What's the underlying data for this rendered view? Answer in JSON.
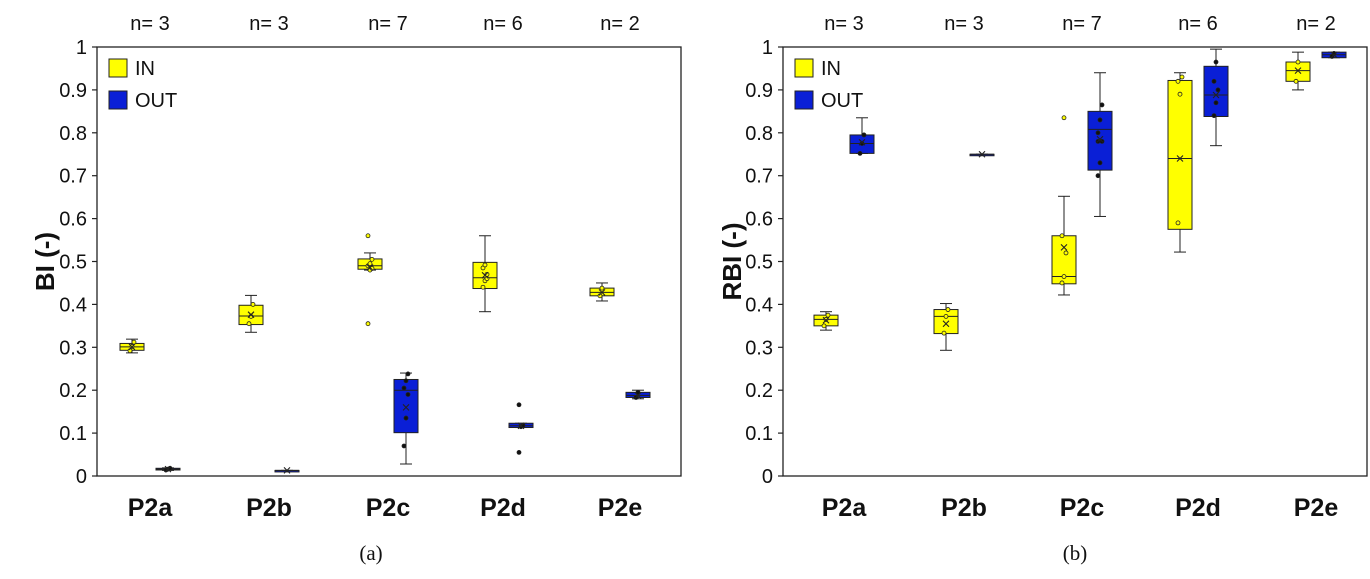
{
  "chart_data": [
    {
      "type": "box",
      "panel": "a",
      "caption": "(a)",
      "ylabel": "BI (-)",
      "ylim": [
        0,
        1
      ],
      "yticks": [
        "0",
        "0.1",
        "0.2",
        "0.3",
        "0.4",
        "0.5",
        "0.6",
        "0.7",
        "0.8",
        "0.9",
        "1"
      ],
      "categories": [
        "P2a",
        "P2b",
        "P2c",
        "P2d",
        "P2e"
      ],
      "counts": [
        "n= 3",
        "n= 3",
        "n= 7",
        "n= 6",
        "n= 2"
      ],
      "legend": {
        "position": "top-left",
        "entries": [
          "IN",
          "OUT"
        ]
      },
      "grid": false,
      "series": [
        {
          "name": "IN",
          "color": "#ffff00",
          "boxes": [
            {
              "min": 0.287,
              "q1": 0.293,
              "median": 0.301,
              "q3": 0.309,
              "max": 0.319,
              "mean": 0.301,
              "points": [
                0.292,
                0.302,
                0.312
              ]
            },
            {
              "min": 0.335,
              "q1": 0.353,
              "median": 0.373,
              "q3": 0.398,
              "max": 0.421,
              "mean": 0.376,
              "points": [
                0.355,
                0.372,
                0.4
              ]
            },
            {
              "min": 0.48,
              "q1": 0.482,
              "median": 0.49,
              "q3": 0.506,
              "max": 0.52,
              "mean": 0.486,
              "points": [
                0.355,
                0.48,
                0.484,
                0.49,
                0.495,
                0.505,
                0.56
              ]
            },
            {
              "min": 0.383,
              "q1": 0.437,
              "median": 0.462,
              "q3": 0.498,
              "max": 0.56,
              "mean": 0.468,
              "points": [
                0.44,
                0.455,
                0.47,
                0.485,
                0.492,
                0.46
              ]
            },
            {
              "min": 0.408,
              "q1": 0.42,
              "median": 0.428,
              "q3": 0.438,
              "max": 0.45,
              "mean": 0.428,
              "points": [
                0.42,
                0.438
              ]
            }
          ]
        },
        {
          "name": "OUT",
          "color": "#0a1fd6",
          "boxes": [
            {
              "min": 0.013,
              "q1": 0.014,
              "median": 0.016,
              "q3": 0.018,
              "max": 0.019,
              "mean": 0.016,
              "points": [
                0.014,
                0.016,
                0.018
              ]
            },
            {
              "min": 0.013,
              "q1": 0.013,
              "median": 0.013,
              "q3": 0.013,
              "max": 0.013,
              "mean": 0.013,
              "points": []
            },
            {
              "min": 0.028,
              "q1": 0.101,
              "median": 0.2,
              "q3": 0.225,
              "max": 0.24,
              "mean": 0.16,
              "points": [
                0.07,
                0.135,
                0.19,
                0.205,
                0.222,
                0.238
              ]
            },
            {
              "min": 0.113,
              "q1": 0.113,
              "median": 0.117,
              "q3": 0.123,
              "max": 0.123,
              "mean": 0.117,
              "points": [
                0.055,
                0.115,
                0.118,
                0.166
              ]
            },
            {
              "min": 0.18,
              "q1": 0.183,
              "median": 0.188,
              "q3": 0.195,
              "max": 0.2,
              "mean": 0.188,
              "points": [
                0.183,
                0.195
              ]
            }
          ]
        }
      ]
    },
    {
      "type": "box",
      "panel": "b",
      "caption": "(b)",
      "ylabel": "RBI (-)",
      "ylim": [
        0,
        1
      ],
      "yticks": [
        "0",
        "0.1",
        "0.2",
        "0.3",
        "0.4",
        "0.5",
        "0.6",
        "0.7",
        "0.8",
        "0.9",
        "1"
      ],
      "categories": [
        "P2a",
        "P2b",
        "P2c",
        "P2d",
        "P2e"
      ],
      "counts": [
        "n= 3",
        "n= 3",
        "n= 7",
        "n= 6",
        "n= 2"
      ],
      "legend": {
        "position": "top-left",
        "entries": [
          "IN",
          "OUT"
        ]
      },
      "grid": false,
      "series": [
        {
          "name": "IN",
          "color": "#ffff00",
          "boxes": [
            {
              "min": 0.34,
              "q1": 0.35,
              "median": 0.365,
              "q3": 0.375,
              "max": 0.383,
              "mean": 0.363,
              "points": [
                0.35,
                0.365,
                0.375
              ]
            },
            {
              "min": 0.293,
              "q1": 0.332,
              "median": 0.372,
              "q3": 0.388,
              "max": 0.402,
              "mean": 0.355,
              "points": [
                0.333,
                0.372,
                0.388
              ]
            },
            {
              "min": 0.422,
              "q1": 0.448,
              "median": 0.465,
              "q3": 0.56,
              "max": 0.652,
              "mean": 0.533,
              "points": [
                0.45,
                0.465,
                0.52,
                0.56,
                0.835
              ]
            },
            {
              "min": 0.522,
              "q1": 0.575,
              "median": 0.74,
              "q3": 0.922,
              "max": 0.94,
              "mean": 0.74,
              "points": [
                0.59,
                0.89,
                0.93,
                0.92
              ]
            },
            {
              "min": 0.9,
              "q1": 0.92,
              "median": 0.945,
              "q3": 0.965,
              "max": 0.988,
              "mean": 0.945,
              "points": [
                0.92,
                0.965
              ]
            }
          ]
        },
        {
          "name": "OUT",
          "color": "#0a1fd6",
          "boxes": [
            {
              "min": 0.752,
              "q1": 0.752,
              "median": 0.775,
              "q3": 0.795,
              "max": 0.835,
              "mean": 0.778,
              "points": [
                0.752,
                0.775,
                0.795
              ]
            },
            {
              "min": 0.75,
              "q1": 0.75,
              "median": 0.75,
              "q3": 0.75,
              "max": 0.75,
              "mean": 0.75,
              "points": []
            },
            {
              "min": 0.605,
              "q1": 0.713,
              "median": 0.808,
              "q3": 0.85,
              "max": 0.94,
              "mean": 0.785,
              "points": [
                0.7,
                0.73,
                0.78,
                0.8,
                0.83,
                0.865,
                0.78
              ]
            },
            {
              "min": 0.77,
              "q1": 0.838,
              "median": 0.888,
              "q3": 0.955,
              "max": 0.995,
              "mean": 0.888,
              "points": [
                0.84,
                0.87,
                0.9,
                0.92,
                0.965
              ]
            },
            {
              "min": 0.975,
              "q1": 0.975,
              "median": 0.982,
              "q3": 0.988,
              "max": 0.988,
              "mean": 0.982,
              "points": [
                0.978,
                0.985
              ]
            }
          ]
        }
      ]
    }
  ]
}
